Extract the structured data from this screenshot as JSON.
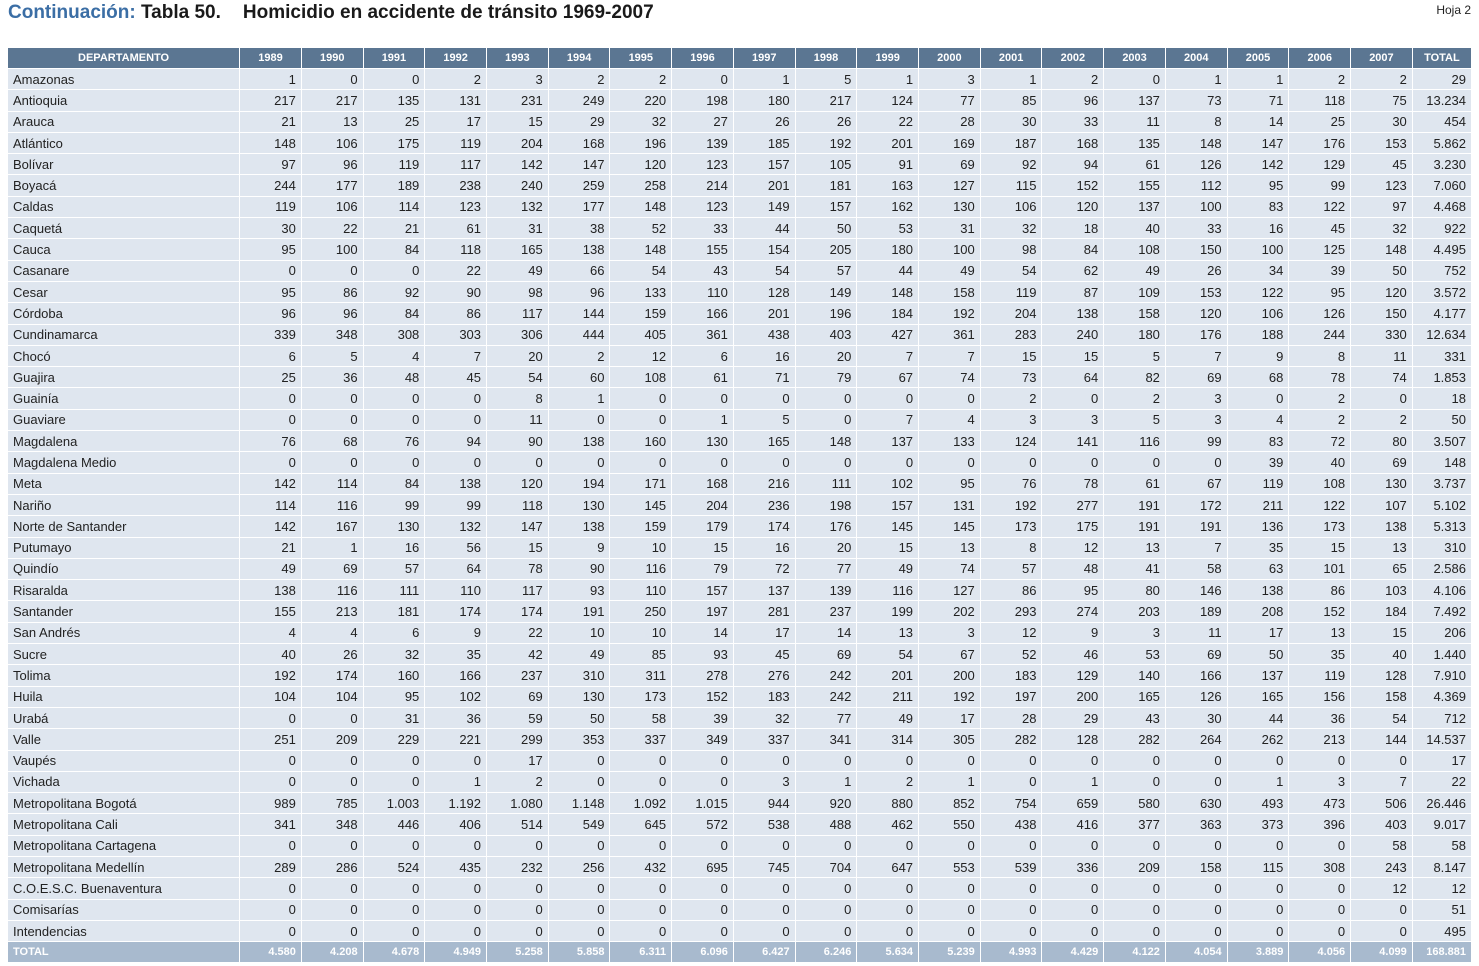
{
  "header": {
    "continuation": "Continuación:",
    "table_label": "Tabla 50.",
    "title": "Homicidio en accidente de tránsito 1969-2007",
    "sheet": "Hoja 2"
  },
  "table": {
    "columns": [
      "DEPARTAMENTO",
      "1989",
      "1990",
      "1991",
      "1992",
      "1993",
      "1994",
      "1995",
      "1996",
      "1997",
      "1998",
      "1999",
      "2000",
      "2001",
      "2002",
      "2003",
      "2004",
      "2005",
      "2006",
      "2007",
      "TOTAL"
    ],
    "rows": [
      [
        "Amazonas",
        "1",
        "0",
        "0",
        "2",
        "3",
        "2",
        "2",
        "0",
        "1",
        "5",
        "1",
        "3",
        "1",
        "2",
        "0",
        "1",
        "1",
        "2",
        "2",
        "29"
      ],
      [
        "Antioquia",
        "217",
        "217",
        "135",
        "131",
        "231",
        "249",
        "220",
        "198",
        "180",
        "217",
        "124",
        "77",
        "85",
        "96",
        "137",
        "73",
        "71",
        "118",
        "75",
        "13.234"
      ],
      [
        "Arauca",
        "21",
        "13",
        "25",
        "17",
        "15",
        "29",
        "32",
        "27",
        "26",
        "26",
        "22",
        "28",
        "30",
        "33",
        "11",
        "8",
        "14",
        "25",
        "30",
        "454"
      ],
      [
        "Atlántico",
        "148",
        "106",
        "175",
        "119",
        "204",
        "168",
        "196",
        "139",
        "185",
        "192",
        "201",
        "169",
        "187",
        "168",
        "135",
        "148",
        "147",
        "176",
        "153",
        "5.862"
      ],
      [
        "Bolívar",
        "97",
        "96",
        "119",
        "117",
        "142",
        "147",
        "120",
        "123",
        "157",
        "105",
        "91",
        "69",
        "92",
        "94",
        "61",
        "126",
        "142",
        "129",
        "45",
        "3.230"
      ],
      [
        "Boyacá",
        "244",
        "177",
        "189",
        "238",
        "240",
        "259",
        "258",
        "214",
        "201",
        "181",
        "163",
        "127",
        "115",
        "152",
        "155",
        "112",
        "95",
        "99",
        "123",
        "7.060"
      ],
      [
        "Caldas",
        "119",
        "106",
        "114",
        "123",
        "132",
        "177",
        "148",
        "123",
        "149",
        "157",
        "162",
        "130",
        "106",
        "120",
        "137",
        "100",
        "83",
        "122",
        "97",
        "4.468"
      ],
      [
        "Caquetá",
        "30",
        "22",
        "21",
        "61",
        "31",
        "38",
        "52",
        "33",
        "44",
        "50",
        "53",
        "31",
        "32",
        "18",
        "40",
        "33",
        "16",
        "45",
        "32",
        "922"
      ],
      [
        "Cauca",
        "95",
        "100",
        "84",
        "118",
        "165",
        "138",
        "148",
        "155",
        "154",
        "205",
        "180",
        "100",
        "98",
        "84",
        "108",
        "150",
        "100",
        "125",
        "148",
        "4.495"
      ],
      [
        "Casanare",
        "0",
        "0",
        "0",
        "22",
        "49",
        "66",
        "54",
        "43",
        "54",
        "57",
        "44",
        "49",
        "54",
        "62",
        "49",
        "26",
        "34",
        "39",
        "50",
        "752"
      ],
      [
        "Cesar",
        "95",
        "86",
        "92",
        "90",
        "98",
        "96",
        "133",
        "110",
        "128",
        "149",
        "148",
        "158",
        "119",
        "87",
        "109",
        "153",
        "122",
        "95",
        "120",
        "3.572"
      ],
      [
        "Córdoba",
        "96",
        "96",
        "84",
        "86",
        "117",
        "144",
        "159",
        "166",
        "201",
        "196",
        "184",
        "192",
        "204",
        "138",
        "158",
        "120",
        "106",
        "126",
        "150",
        "4.177"
      ],
      [
        "Cundinamarca",
        "339",
        "348",
        "308",
        "303",
        "306",
        "444",
        "405",
        "361",
        "438",
        "403",
        "427",
        "361",
        "283",
        "240",
        "180",
        "176",
        "188",
        "244",
        "330",
        "12.634"
      ],
      [
        "Chocó",
        "6",
        "5",
        "4",
        "7",
        "20",
        "2",
        "12",
        "6",
        "16",
        "20",
        "7",
        "7",
        "15",
        "15",
        "5",
        "7",
        "9",
        "8",
        "11",
        "331"
      ],
      [
        "Guajira",
        "25",
        "36",
        "48",
        "45",
        "54",
        "60",
        "108",
        "61",
        "71",
        "79",
        "67",
        "74",
        "73",
        "64",
        "82",
        "69",
        "68",
        "78",
        "74",
        "1.853"
      ],
      [
        "Guainía",
        "0",
        "0",
        "0",
        "0",
        "8",
        "1",
        "0",
        "0",
        "0",
        "0",
        "0",
        "0",
        "2",
        "0",
        "2",
        "3",
        "0",
        "2",
        "0",
        "18"
      ],
      [
        "Guaviare",
        "0",
        "0",
        "0",
        "0",
        "11",
        "0",
        "0",
        "1",
        "5",
        "0",
        "7",
        "4",
        "3",
        "3",
        "5",
        "3",
        "4",
        "2",
        "2",
        "50"
      ],
      [
        "Magdalena",
        "76",
        "68",
        "76",
        "94",
        "90",
        "138",
        "160",
        "130",
        "165",
        "148",
        "137",
        "133",
        "124",
        "141",
        "116",
        "99",
        "83",
        "72",
        "80",
        "3.507"
      ],
      [
        "Magdalena Medio",
        "0",
        "0",
        "0",
        "0",
        "0",
        "0",
        "0",
        "0",
        "0",
        "0",
        "0",
        "0",
        "0",
        "0",
        "0",
        "0",
        "39",
        "40",
        "69",
        "148"
      ],
      [
        "Meta",
        "142",
        "114",
        "84",
        "138",
        "120",
        "194",
        "171",
        "168",
        "216",
        "111",
        "102",
        "95",
        "76",
        "78",
        "61",
        "67",
        "119",
        "108",
        "130",
        "3.737"
      ],
      [
        "Nariño",
        "114",
        "116",
        "99",
        "99",
        "118",
        "130",
        "145",
        "204",
        "236",
        "198",
        "157",
        "131",
        "192",
        "277",
        "191",
        "172",
        "211",
        "122",
        "107",
        "5.102"
      ],
      [
        "Norte de Santander",
        "142",
        "167",
        "130",
        "132",
        "147",
        "138",
        "159",
        "179",
        "174",
        "176",
        "145",
        "145",
        "173",
        "175",
        "191",
        "191",
        "136",
        "173",
        "138",
        "5.313"
      ],
      [
        "Putumayo",
        "21",
        "1",
        "16",
        "56",
        "15",
        "9",
        "10",
        "15",
        "16",
        "20",
        "15",
        "13",
        "8",
        "12",
        "13",
        "7",
        "35",
        "15",
        "13",
        "310"
      ],
      [
        "Quindío",
        "49",
        "69",
        "57",
        "64",
        "78",
        "90",
        "116",
        "79",
        "72",
        "77",
        "49",
        "74",
        "57",
        "48",
        "41",
        "58",
        "63",
        "101",
        "65",
        "2.586"
      ],
      [
        "Risaralda",
        "138",
        "116",
        "111",
        "110",
        "117",
        "93",
        "110",
        "157",
        "137",
        "139",
        "116",
        "127",
        "86",
        "95",
        "80",
        "146",
        "138",
        "86",
        "103",
        "4.106"
      ],
      [
        "Santander",
        "155",
        "213",
        "181",
        "174",
        "174",
        "191",
        "250",
        "197",
        "281",
        "237",
        "199",
        "202",
        "293",
        "274",
        "203",
        "189",
        "208",
        "152",
        "184",
        "7.492"
      ],
      [
        "San Andrés",
        "4",
        "4",
        "6",
        "9",
        "22",
        "10",
        "10",
        "14",
        "17",
        "14",
        "13",
        "3",
        "12",
        "9",
        "3",
        "11",
        "17",
        "13",
        "15",
        "206"
      ],
      [
        "Sucre",
        "40",
        "26",
        "32",
        "35",
        "42",
        "49",
        "85",
        "93",
        "45",
        "69",
        "54",
        "67",
        "52",
        "46",
        "53",
        "69",
        "50",
        "35",
        "40",
        "1.440"
      ],
      [
        "Tolima",
        "192",
        "174",
        "160",
        "166",
        "237",
        "310",
        "311",
        "278",
        "276",
        "242",
        "201",
        "200",
        "183",
        "129",
        "140",
        "166",
        "137",
        "119",
        "128",
        "7.910"
      ],
      [
        "Huila",
        "104",
        "104",
        "95",
        "102",
        "69",
        "130",
        "173",
        "152",
        "183",
        "242",
        "211",
        "192",
        "197",
        "200",
        "165",
        "126",
        "165",
        "156",
        "158",
        "4.369"
      ],
      [
        "Urabá",
        "0",
        "0",
        "31",
        "36",
        "59",
        "50",
        "58",
        "39",
        "32",
        "77",
        "49",
        "17",
        "28",
        "29",
        "43",
        "30",
        "44",
        "36",
        "54",
        "712"
      ],
      [
        "Valle",
        "251",
        "209",
        "229",
        "221",
        "299",
        "353",
        "337",
        "349",
        "337",
        "341",
        "314",
        "305",
        "282",
        "128",
        "282",
        "264",
        "262",
        "213",
        "144",
        "14.537"
      ],
      [
        "Vaupés",
        "0",
        "0",
        "0",
        "0",
        "17",
        "0",
        "0",
        "0",
        "0",
        "0",
        "0",
        "0",
        "0",
        "0",
        "0",
        "0",
        "0",
        "0",
        "0",
        "17"
      ],
      [
        "Vichada",
        "0",
        "0",
        "0",
        "1",
        "2",
        "0",
        "0",
        "0",
        "3",
        "1",
        "2",
        "1",
        "0",
        "1",
        "0",
        "0",
        "1",
        "3",
        "7",
        "22"
      ],
      [
        "Metropolitana Bogotá",
        "989",
        "785",
        "1.003",
        "1.192",
        "1.080",
        "1.148",
        "1.092",
        "1.015",
        "944",
        "920",
        "880",
        "852",
        "754",
        "659",
        "580",
        "630",
        "493",
        "473",
        "506",
        "26.446"
      ],
      [
        "Metropolitana Cali",
        "341",
        "348",
        "446",
        "406",
        "514",
        "549",
        "645",
        "572",
        "538",
        "488",
        "462",
        "550",
        "438",
        "416",
        "377",
        "363",
        "373",
        "396",
        "403",
        "9.017"
      ],
      [
        "Metropolitana Cartagena",
        "0",
        "0",
        "0",
        "0",
        "0",
        "0",
        "0",
        "0",
        "0",
        "0",
        "0",
        "0",
        "0",
        "0",
        "0",
        "0",
        "0",
        "0",
        "58",
        "58"
      ],
      [
        "Metropolitana Medellín",
        "289",
        "286",
        "524",
        "435",
        "232",
        "256",
        "432",
        "695",
        "745",
        "704",
        "647",
        "553",
        "539",
        "336",
        "209",
        "158",
        "115",
        "308",
        "243",
        "8.147"
      ],
      [
        "C.O.E.S.C. Buenaventura",
        "0",
        "0",
        "0",
        "0",
        "0",
        "0",
        "0",
        "0",
        "0",
        "0",
        "0",
        "0",
        "0",
        "0",
        "0",
        "0",
        "0",
        "0",
        "12",
        "12"
      ],
      [
        "Comisarías",
        "0",
        "0",
        "0",
        "0",
        "0",
        "0",
        "0",
        "0",
        "0",
        "0",
        "0",
        "0",
        "0",
        "0",
        "0",
        "0",
        "0",
        "0",
        "0",
        "51"
      ],
      [
        "Intendencias",
        "0",
        "0",
        "0",
        "0",
        "0",
        "0",
        "0",
        "0",
        "0",
        "0",
        "0",
        "0",
        "0",
        "0",
        "0",
        "0",
        "0",
        "0",
        "0",
        "495"
      ]
    ],
    "total": [
      "TOTAL",
      "4.580",
      "4.208",
      "4.678",
      "4.949",
      "5.258",
      "5.858",
      "6.311",
      "6.096",
      "6.427",
      "6.246",
      "5.634",
      "5.239",
      "4.993",
      "4.429",
      "4.122",
      "4.054",
      "3.889",
      "4.056",
      "4.099",
      "168.881"
    ]
  }
}
